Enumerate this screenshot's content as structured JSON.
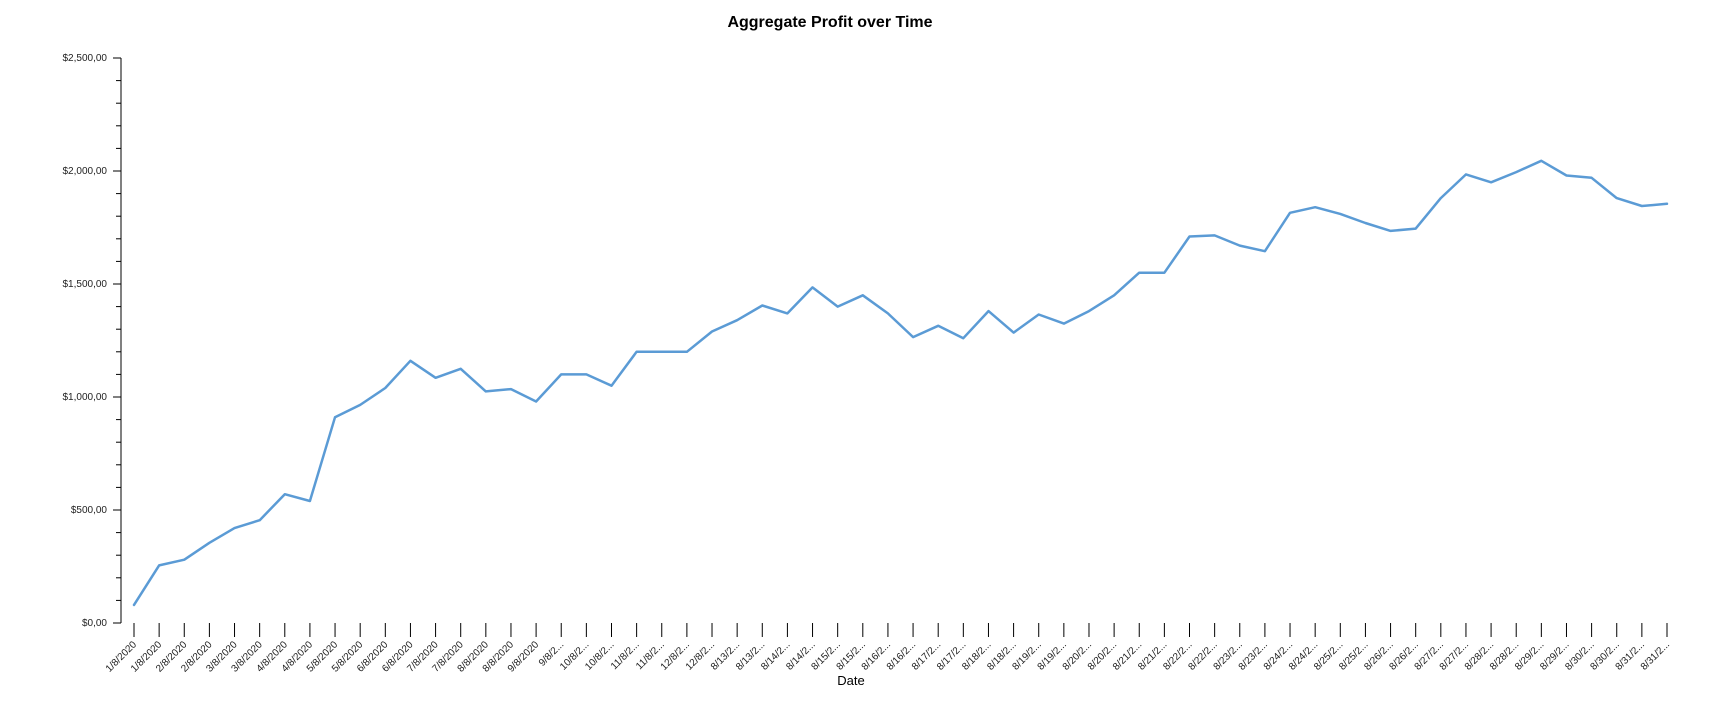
{
  "chart_data": {
    "type": "line",
    "title": "Aggregate Profit over Time",
    "xlabel": "Date",
    "ylabel": "",
    "ylim": [
      0,
      2500
    ],
    "grid": false,
    "legend": "none",
    "line_color": "#5B9BD5",
    "y_ticks": [
      {
        "value": 0,
        "label": "$0,00"
      },
      {
        "value": 500,
        "label": "$500,00"
      },
      {
        "value": 1000,
        "label": "$1,000,00"
      },
      {
        "value": 1500,
        "label": "$1,500,00"
      },
      {
        "value": 2000,
        "label": "$2,000,00"
      },
      {
        "value": 2500,
        "label": "$2,500,00"
      }
    ],
    "x": [
      "1/8/2020",
      "1/8/2020",
      "2/8/2020",
      "2/8/2020",
      "3/8/2020",
      "3/8/2020",
      "4/8/2020",
      "4/8/2020",
      "5/8/2020",
      "5/8/2020",
      "6/8/2020",
      "6/8/2020",
      "7/8/2020",
      "7/8/2020",
      "8/8/2020",
      "8/8/2020",
      "9/8/2020",
      "9/8/2...",
      "10/8/2...",
      "10/8/2...",
      "11/8/2...",
      "11/8/2...",
      "12/8/2...",
      "12/8/2...",
      "8/13/2...",
      "8/13/2...",
      "8/14/2...",
      "8/14/2...",
      "8/15/2...",
      "8/15/2...",
      "8/16/2...",
      "8/16/2...",
      "8/17/2...",
      "8/17/2...",
      "8/18/2...",
      "8/18/2...",
      "8/19/2...",
      "8/19/2...",
      "8/20/2...",
      "8/20/2...",
      "8/21/2...",
      "8/21/2...",
      "8/22/2...",
      "8/22/2...",
      "8/23/2...",
      "8/23/2...",
      "8/24/2...",
      "8/24/2...",
      "8/25/2...",
      "8/25/2...",
      "8/26/2...",
      "8/26/2...",
      "8/27/2...",
      "8/27/2...",
      "8/28/2...",
      "8/28/2...",
      "8/29/2...",
      "8/29/2...",
      "8/30/2...",
      "8/30/2...",
      "8/31/2...",
      "8/31/2..."
    ],
    "series": [
      {
        "values": [
          80,
          255,
          280,
          355,
          420,
          455,
          570,
          540,
          910,
          965,
          1040,
          1160,
          1085,
          1125,
          1025,
          1035,
          980,
          1100,
          1100,
          1050,
          1200,
          1200,
          1200,
          1290,
          1340,
          1405,
          1370,
          1485,
          1400,
          1450,
          1370,
          1265,
          1315,
          1260,
          1380,
          1285,
          1365,
          1325,
          1380,
          1450,
          1550,
          1550,
          1710,
          1715,
          1670,
          1645,
          1815,
          1840,
          1810,
          1770,
          1735,
          1745,
          1880,
          1985,
          1950,
          1995,
          2045,
          1980,
          1970,
          1880,
          1845,
          1855
        ]
      }
    ]
  }
}
